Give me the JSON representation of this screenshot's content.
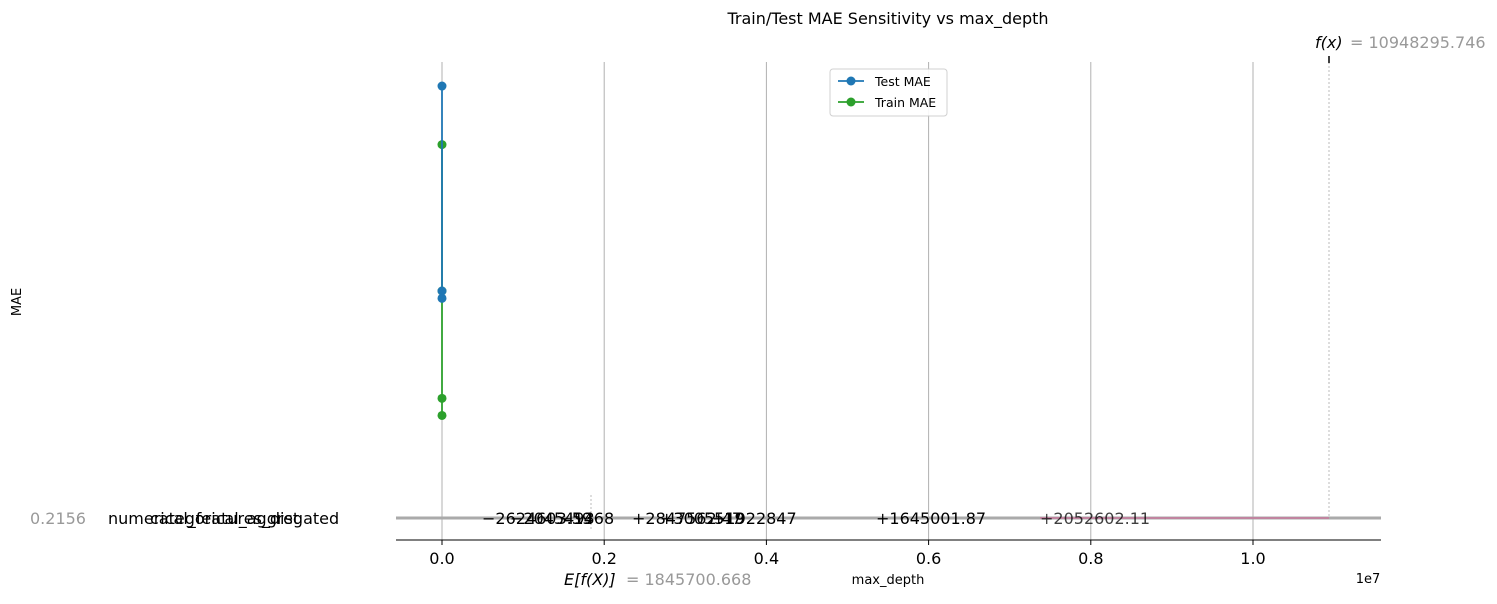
{
  "chart_data": {
    "type": "line",
    "title": "Train/Test MAE Sensitivity vs max_depth",
    "xlabel": "max_depth",
    "ylabel": "MAE",
    "x_offset_label": "1e7",
    "xlim": [
      -550000,
      11500000
    ],
    "x_ticks": [
      0,
      2000000,
      4000000,
      6000000,
      8000000,
      10000000
    ],
    "x_tick_labels": [
      "0.0",
      "0.2",
      "0.4",
      "0.6",
      "0.8",
      "1.0"
    ],
    "grid": "vertical",
    "legend_position": "top-center",
    "series": [
      {
        "name": "Test MAE",
        "color": "#1f77b4",
        "points": [
          {
            "x": 0,
            "y": 0.92
          },
          {
            "x": 0,
            "y": 0.5
          },
          {
            "x": 0,
            "y": 0.485
          }
        ]
      },
      {
        "name": "Train MAE",
        "color": "#2ca02c",
        "points": [
          {
            "x": 0,
            "y": 0.8
          },
          {
            "x": 0,
            "y": 0.5
          },
          {
            "x": 0,
            "y": 0.28
          },
          {
            "x": 0,
            "y": 0.245
          }
        ]
      }
    ],
    "force_plot": {
      "base_label": "E[f(X)]",
      "base_value": "= 1845700.668",
      "base_x": 1845700.668,
      "output_label": "f(x)",
      "output_value": "= 10948295.746",
      "output_x": 10948295.746,
      "negative_color": "#008bfb",
      "positive_color": "#ff0051",
      "negative_labels": [
        "−2624603.59",
        "−2045493",
        "−1468"
      ],
      "positive_labels": [
        "+2847562.47",
        "+3005519",
        "+1922847",
        "+1645001.87"
      ],
      "overlay_label": "+2052602.11",
      "left_axis_labels": [
        "0.2156",
        "numerical_features_dist",
        "categorical_aggregated"
      ],
      "left_value_color": "#999999"
    }
  }
}
